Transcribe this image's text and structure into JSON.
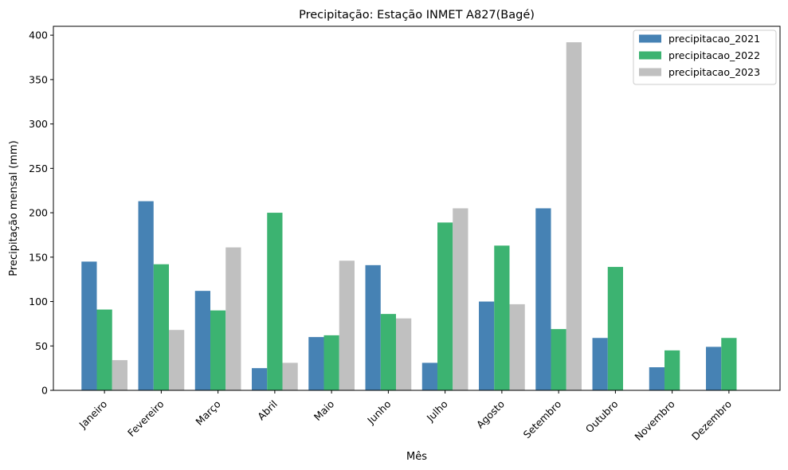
{
  "chart_data": {
    "type": "bar",
    "title": "Precipitação: Estação INMET A827(Bagé)",
    "xlabel": "Mês",
    "ylabel": "Precipitação mensal (mm)",
    "ylim": [
      0,
      410
    ],
    "yticks": [
      0,
      50,
      100,
      150,
      200,
      250,
      300,
      350,
      400
    ],
    "categories": [
      "Janeiro",
      "Fevereiro",
      "Março",
      "Abril",
      "Maio",
      "Junho",
      "Julho",
      "Agosto",
      "Setembro",
      "Outubro",
      "Novembro",
      "Dezembro"
    ],
    "series": [
      {
        "name": "precipitacao_2021",
        "color": "#4682b4",
        "values": [
          145,
          213,
          112,
          25,
          60,
          141,
          31,
          100,
          205,
          59,
          26,
          49
        ]
      },
      {
        "name": "precipitacao_2022",
        "color": "#3cb371",
        "values": [
          91,
          142,
          90,
          200,
          62,
          86,
          189,
          163,
          69,
          139,
          45,
          59
        ]
      },
      {
        "name": "precipitacao_2023",
        "color": "#c0c0c0",
        "values": [
          34,
          68,
          161,
          31,
          146,
          81,
          205,
          97,
          392,
          null,
          null,
          null
        ]
      }
    ],
    "legend": "top-right",
    "grid": false
  }
}
